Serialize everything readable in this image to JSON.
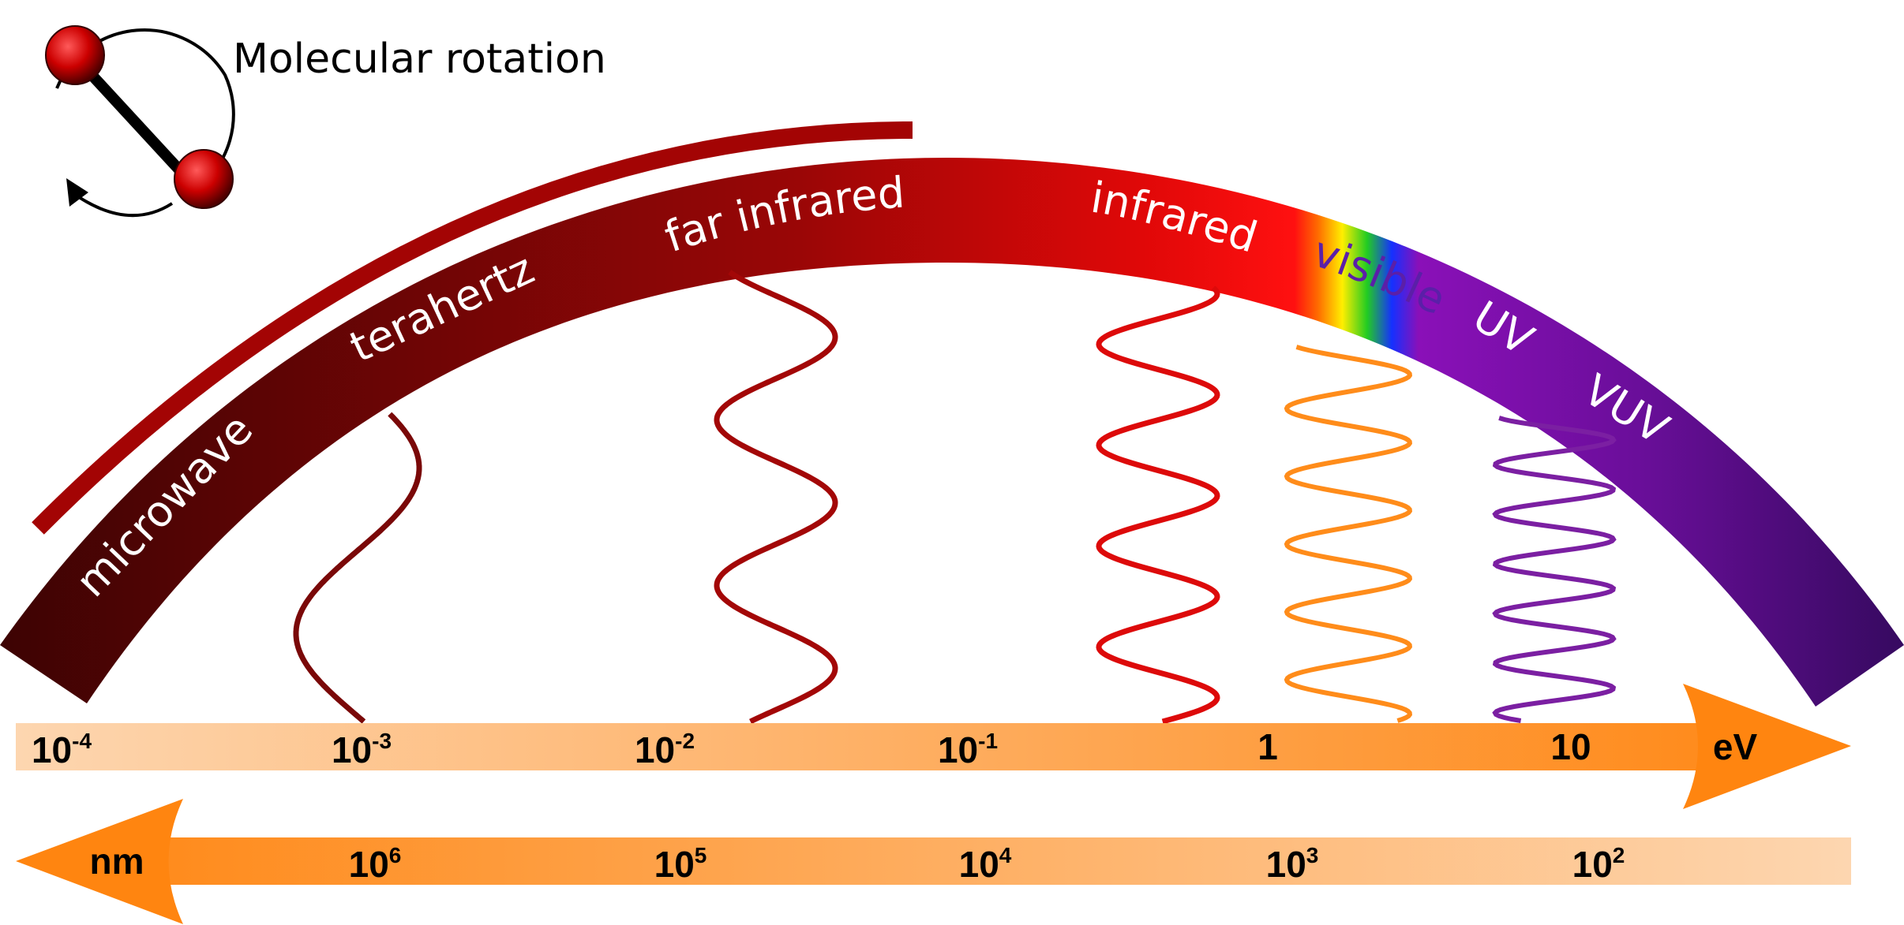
{
  "title": "Molecular rotation",
  "band_labels": {
    "microwave": "microwave",
    "terahertz": "terahertz",
    "far_infrared": "far infrared",
    "infrared": "infrared",
    "visible": "visible",
    "uv": "UV",
    "vuv": "VUV"
  },
  "energy_axis": {
    "unit": "eV",
    "ticks": [
      {
        "base": "10",
        "exp": "-4"
      },
      {
        "base": "10",
        "exp": "-3"
      },
      {
        "base": "10",
        "exp": "-2"
      },
      {
        "base": "10",
        "exp": "-1"
      },
      {
        "base": "1",
        "exp": ""
      },
      {
        "base": "10",
        "exp": ""
      }
    ]
  },
  "wavelength_axis": {
    "unit": "nm",
    "ticks": [
      {
        "base": "10",
        "exp": "6"
      },
      {
        "base": "10",
        "exp": "5"
      },
      {
        "base": "10",
        "exp": "4"
      },
      {
        "base": "10",
        "exp": "3"
      },
      {
        "base": "10",
        "exp": "2"
      }
    ]
  },
  "colors": {
    "microwave": "#4a0404",
    "terahertz": "#7a0808",
    "far_infrared": "#a30707",
    "infrared": "#ff0a0a",
    "uv": "#8e14b0",
    "vuv": "#3b0a6b",
    "axis_orange": "#ff8a10",
    "axis_light": "#fdd5ad",
    "wave_visible": "#ff8c1a",
    "wave_uv": "#7b1fa2",
    "molecule": "#c40000"
  }
}
